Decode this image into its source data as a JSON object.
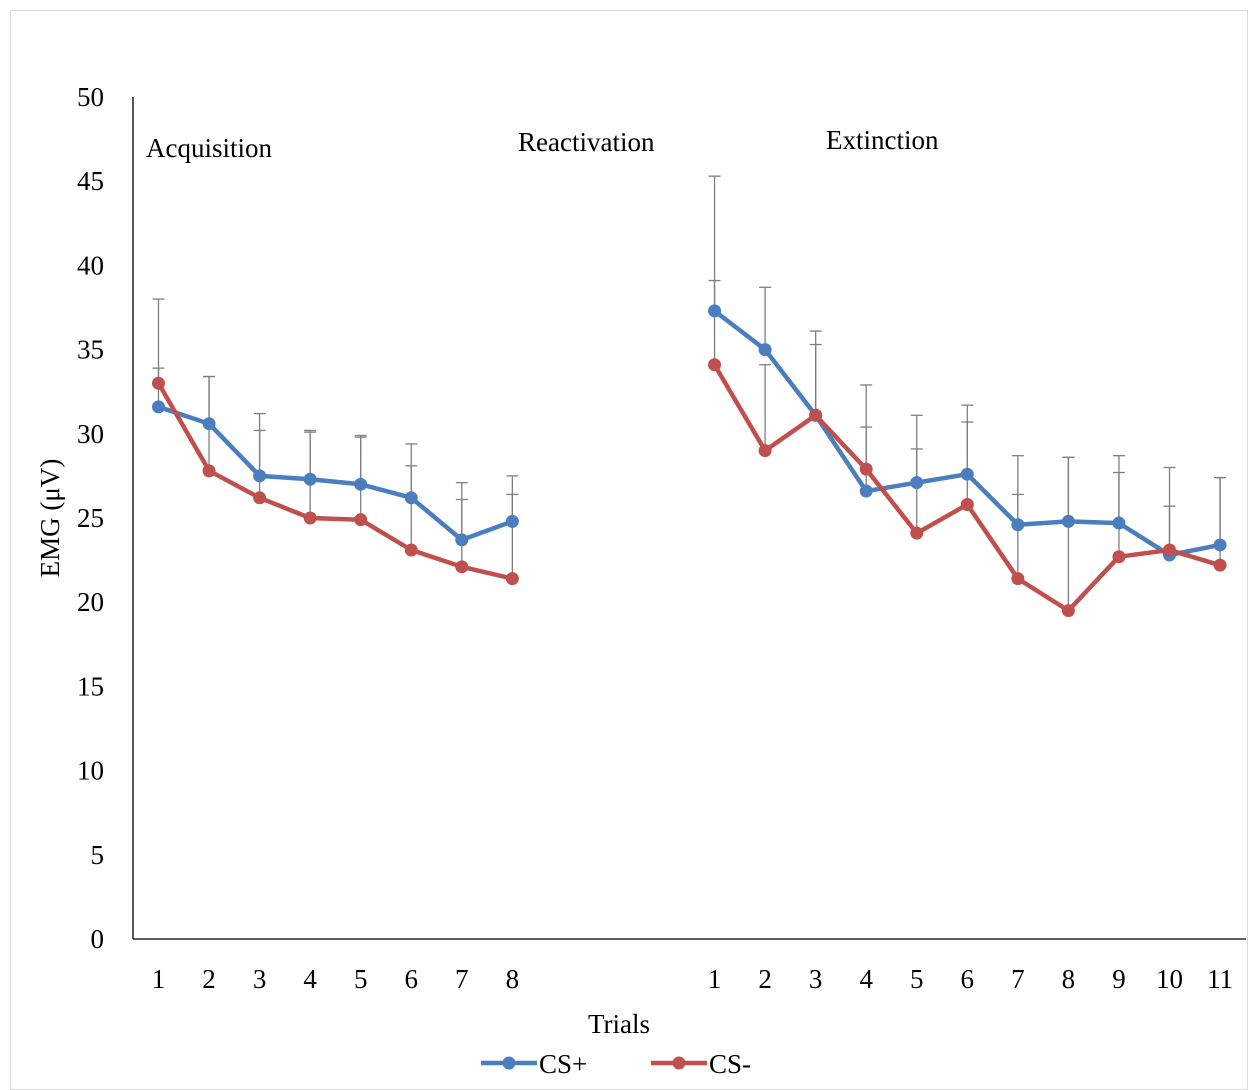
{
  "chart_data": {
    "type": "line",
    "ylabel": "EMG (μV)",
    "xlabel": "Trials",
    "ylim": [
      0,
      50
    ],
    "yticks": [
      "0",
      "5",
      "10",
      "15",
      "20",
      "25",
      "30",
      "35",
      "40",
      "45",
      "50"
    ],
    "grid": false,
    "legend_position": "bottom",
    "colors": {
      "CS+": "#4a7ebf",
      "CS-": "#c0504d",
      "error": "#7f7f7f"
    },
    "phases": [
      {
        "label": "Acquisition",
        "categories": [
          "1",
          "2",
          "3",
          "4",
          "5",
          "6",
          "7",
          "8"
        ],
        "series": [
          {
            "name": "CS+",
            "values": [
              31.6,
              30.6,
              27.5,
              27.3,
              27.0,
              26.2,
              23.7,
              24.8
            ],
            "error": [
              2.3,
              2.8,
              2.7,
              2.8,
              2.8,
              1.9,
              2.4,
              1.6
            ]
          },
          {
            "name": "CS-",
            "values": [
              33.0,
              27.8,
              26.2,
              25.0,
              24.9,
              23.1,
              22.1,
              21.4
            ],
            "error": [
              5.0,
              5.6,
              5.0,
              5.2,
              5.0,
              6.3,
              5.0,
              6.1
            ]
          }
        ]
      },
      {
        "label": "Reactivation",
        "categories": [],
        "series": []
      },
      {
        "label": "Extinction",
        "categories": [
          "1",
          "2",
          "3",
          "4",
          "5",
          "6",
          "7",
          "8",
          "9",
          "10",
          "11"
        ],
        "series": [
          {
            "name": "CS+",
            "values": [
              37.3,
              35.0,
              31.1,
              26.6,
              27.1,
              27.6,
              24.6,
              24.8,
              24.7,
              22.8,
              23.4
            ],
            "error": [
              8.0,
              3.7,
              4.2,
              3.8,
              2.0,
              3.1,
              1.8,
              3.8,
              3.0,
              2.9,
              4.0
            ]
          },
          {
            "name": "CS-",
            "values": [
              34.1,
              29.0,
              31.1,
              27.9,
              24.1,
              25.8,
              21.4,
              19.5,
              22.7,
              23.1,
              22.2
            ],
            "error": [
              5.0,
              5.1,
              5.0,
              5.0,
              7.0,
              5.9,
              7.3,
              9.1,
              6.0,
              4.9,
              5.2
            ]
          }
        ]
      }
    ],
    "legend": [
      "CS+",
      "CS-"
    ]
  }
}
